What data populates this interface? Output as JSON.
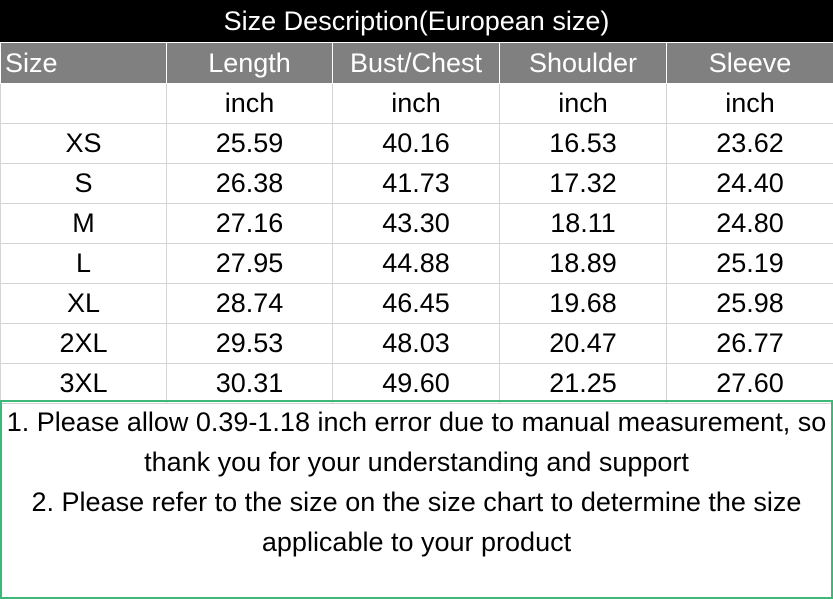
{
  "title": "Size Description(European size)",
  "columns": [
    "Size",
    "Length",
    "Bust/Chest",
    "Shoulder",
    "Sleeve"
  ],
  "units": [
    "",
    "inch",
    "inch",
    "inch",
    "inch"
  ],
  "rows": [
    [
      "XS",
      "25.59",
      "40.16",
      "16.53",
      "23.62"
    ],
    [
      "S",
      "26.38",
      "41.73",
      "17.32",
      "24.40"
    ],
    [
      "M",
      "27.16",
      "43.30",
      "18.11",
      "24.80"
    ],
    [
      "L",
      "27.95",
      "44.88",
      "18.89",
      "25.19"
    ],
    [
      "XL",
      "28.74",
      "46.45",
      "19.68",
      "25.98"
    ],
    [
      "2XL",
      "29.53",
      "48.03",
      "20.47",
      "26.77"
    ],
    [
      "3XL",
      "30.31",
      "49.60",
      "21.25",
      "27.60"
    ]
  ],
  "notes": [
    "1. Please allow 0.39-1.18 inch error due to manual measurement, so thank you for your understanding and support",
    "2. Please refer to the size on the size chart to determine the size applicable to your product"
  ],
  "colors": {
    "title_bg": "#000000",
    "header_bg": "#808080",
    "notes_border": "#3cb878"
  }
}
